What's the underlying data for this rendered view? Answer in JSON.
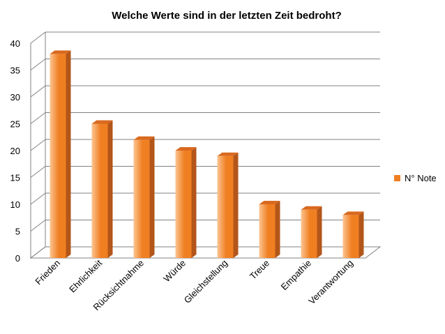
{
  "chart_data": {
    "type": "bar",
    "title": "Welche Werte sind in der letzten Zeit bedroht?",
    "categories": [
      "Frieden",
      "Ehrlichkeit",
      "Rücksichtnahme",
      "Würde",
      "Gleichstellung",
      "Treue",
      "Empathie",
      "Verantwortung"
    ],
    "series": [
      {
        "name": "N° Note",
        "values": [
          38,
          25,
          22,
          20,
          19,
          10,
          9,
          8
        ]
      }
    ],
    "ylim": [
      0,
      40
    ],
    "yticks": [
      0,
      5,
      10,
      15,
      20,
      25,
      30,
      35,
      40
    ],
    "grid": true,
    "legend_position": "right",
    "bar_style": "3d",
    "colors": {
      "bar_front_light": "#fcc593",
      "bar_front_dark": "#f07f22",
      "bar_side": "#b3561a",
      "bar_top": "#d9691f",
      "gridline": "#808080",
      "wall": "#ffffff"
    }
  }
}
